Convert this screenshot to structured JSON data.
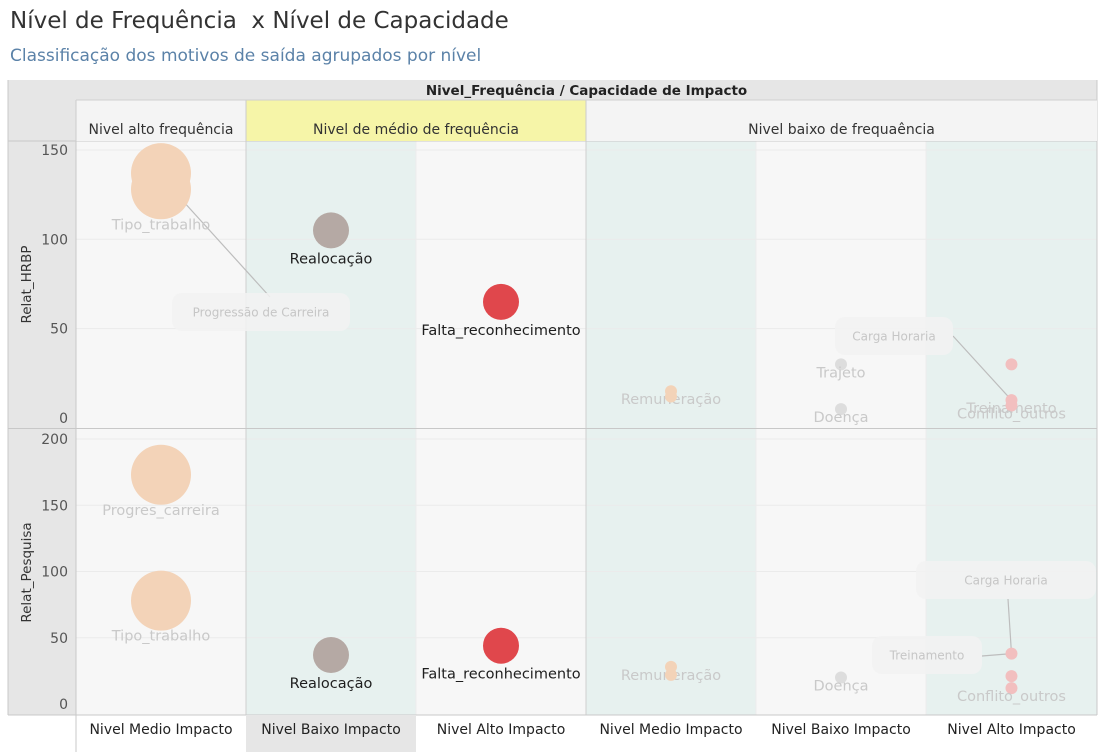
{
  "title": "Nível de Frequência  x Nível de Capacidade",
  "subtitle": "Classificação dos motivos de saída agrupados por nível",
  "colors": {
    "highlight_header": "#f6f5a8",
    "shade_column": "#e7f1ef",
    "light_column": "#f7f7f7",
    "header_bg": "#e6e6e6",
    "red": "#e0474c",
    "gray_mark": "#b5a9a4",
    "faded_peach": "#f3d3b8",
    "faded_gray": "#dddddd",
    "faded_pink": "#f2bfbf"
  },
  "chart_data": {
    "type": "scatter",
    "header_title": "Nivel_Frequência / Capacidade de Impacto",
    "frequency_levels": [
      {
        "label": "Nivel alto frequência",
        "highlighted": false
      },
      {
        "label": "Nivel de médio de frequência",
        "highlighted": true
      },
      {
        "label": "Nivel baixo de frequaência",
        "highlighted": false
      }
    ],
    "impact_columns": [
      {
        "label": "Nivel Medio Impacto",
        "frequency_index": 0,
        "shaded": false
      },
      {
        "label": "Nivel Baixo Impacto",
        "frequency_index": 1,
        "shaded": true
      },
      {
        "label": "Nivel Alto Impacto",
        "frequency_index": 1,
        "shaded": false
      },
      {
        "label": "Nivel Medio Impacto",
        "frequency_index": 2,
        "shaded": true
      },
      {
        "label": "Nivel Baixo Impacto",
        "frequency_index": 2,
        "shaded": false
      },
      {
        "label": "Nivel Alto Impacto",
        "frequency_index": 2,
        "shaded": true
      }
    ],
    "panels": [
      {
        "ylabel": "Relat_HRBP",
        "ylim": [
          0,
          160
        ],
        "yticks": [
          0,
          50,
          100,
          150
        ],
        "points": [
          {
            "col": 0,
            "y": 137,
            "size": 60,
            "color": "faded_peach"
          },
          {
            "col": 0,
            "y": 128,
            "size": 60,
            "color": "faded_peach",
            "label": "Tipo_trabalho",
            "faded": true
          },
          {
            "col": 1,
            "y": 105,
            "size": 36,
            "color": "gray_mark",
            "label": "Realocação"
          },
          {
            "col": 2,
            "y": 65,
            "size": 36,
            "color": "red",
            "label": "Falta_reconhecimento"
          },
          {
            "col": 3,
            "y": 15,
            "size": 12,
            "color": "faded_peach",
            "label": "Remuneração",
            "faded": true
          },
          {
            "col": 3,
            "y": 12,
            "size": 12,
            "color": "faded_peach"
          },
          {
            "col": 4,
            "y": 30,
            "size": 12,
            "color": "faded_gray",
            "label": "Trajeto",
            "faded": true
          },
          {
            "col": 4,
            "y": 5,
            "size": 12,
            "color": "faded_gray",
            "label": "Doença",
            "faded": true
          },
          {
            "col": 5,
            "y": 30,
            "size": 12,
            "color": "faded_pink"
          },
          {
            "col": 5,
            "y": 10,
            "size": 12,
            "color": "faded_pink",
            "label": "Treinamento",
            "faded": true
          },
          {
            "col": 5,
            "y": 7,
            "size": 12,
            "color": "faded_pink",
            "label": "Conflito_outros",
            "faded": true
          }
        ],
        "tooltips": [
          {
            "label": "Progressão de Carreira",
            "target_col": 0,
            "target_y": 135
          },
          {
            "label": "Carga Horaria",
            "target_col": 5,
            "target_y": 10
          }
        ]
      },
      {
        "ylabel": "Relat_Pesquisa",
        "ylim": [
          0,
          210
        ],
        "yticks": [
          0,
          50,
          100,
          150,
          200
        ],
        "points": [
          {
            "col": 0,
            "y": 173,
            "size": 60,
            "color": "faded_peach",
            "label": "Progres_carreira",
            "faded": true
          },
          {
            "col": 0,
            "y": 78,
            "size": 60,
            "color": "faded_peach",
            "label": "Tipo_trabalho",
            "faded": true
          },
          {
            "col": 1,
            "y": 37,
            "size": 36,
            "color": "gray_mark",
            "label": "Realocação"
          },
          {
            "col": 2,
            "y": 44,
            "size": 36,
            "color": "red",
            "label": "Falta_reconhecimento"
          },
          {
            "col": 3,
            "y": 28,
            "size": 12,
            "color": "faded_peach",
            "label": "Remuneração",
            "faded": true
          },
          {
            "col": 3,
            "y": 22,
            "size": 12,
            "color": "faded_peach"
          },
          {
            "col": 4,
            "y": 20,
            "size": 12,
            "color": "faded_gray",
            "label": "Doença",
            "faded": true
          },
          {
            "col": 5,
            "y": 38,
            "size": 12,
            "color": "faded_pink"
          },
          {
            "col": 5,
            "y": 21,
            "size": 12,
            "color": "faded_pink"
          },
          {
            "col": 5,
            "y": 12,
            "size": 12,
            "color": "faded_pink",
            "label": "Conflito_outros",
            "faded": true
          }
        ],
        "tooltips": [
          {
            "label": "Carga Horaria",
            "target_col": 5,
            "target_y": 38
          },
          {
            "label": "Treinamento",
            "target_col": 5,
            "target_y": 38
          }
        ]
      }
    ]
  }
}
